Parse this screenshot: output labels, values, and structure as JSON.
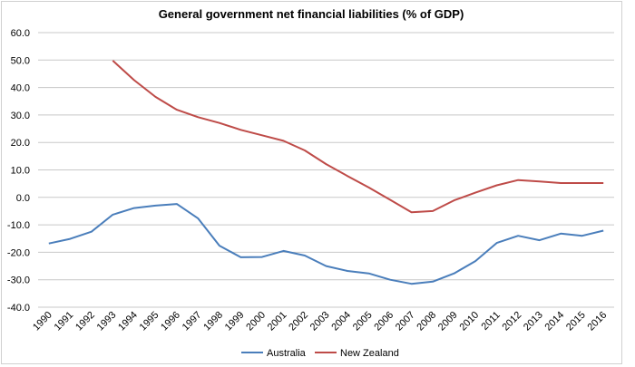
{
  "chart_data": {
    "type": "line",
    "title": "General government net financial liabilities (% of GDP)",
    "xlabel": "",
    "ylabel": "",
    "categories": [
      "1990",
      "1991",
      "1992",
      "1993",
      "1994",
      "1995",
      "1996",
      "1997",
      "1998",
      "1999",
      "2000",
      "2001",
      "2002",
      "2003",
      "2004",
      "2005",
      "2006",
      "2007",
      "2008",
      "2009",
      "2010",
      "2011",
      "2012",
      "2013",
      "2014",
      "2015",
      "2016"
    ],
    "ylim": [
      -40,
      60
    ],
    "yticks": [
      "60.0",
      "50.0",
      "40.0",
      "30.0",
      "20.0",
      "10.0",
      "0.0",
      "-10.0",
      "-20.0",
      "-30.0",
      "-40.0"
    ],
    "grid": true,
    "legend": "bottom",
    "series": [
      {
        "name": "Australia",
        "color": "#4a7ebb",
        "values": [
          -16.8,
          -15.1,
          -12.5,
          -6.3,
          -3.9,
          -3.0,
          -2.4,
          -7.7,
          -17.6,
          -21.8,
          -21.7,
          -19.5,
          -21.2,
          -25.0,
          -26.8,
          -27.7,
          -30.0,
          -31.5,
          -30.7,
          -27.7,
          -23.2,
          -16.6,
          -14.0,
          -15.6,
          -13.2,
          -14.0,
          -12.1
        ]
      },
      {
        "name": "New Zealand",
        "color": "#be4b48",
        "values": [
          null,
          null,
          null,
          49.8,
          42.7,
          36.6,
          31.9,
          29.2,
          27.1,
          24.6,
          22.6,
          20.6,
          17.1,
          12.1,
          7.8,
          3.6,
          -0.9,
          -5.4,
          -5.0,
          -1.1,
          1.7,
          4.4,
          6.3,
          5.8,
          5.2,
          5.2,
          5.2
        ]
      }
    ]
  }
}
